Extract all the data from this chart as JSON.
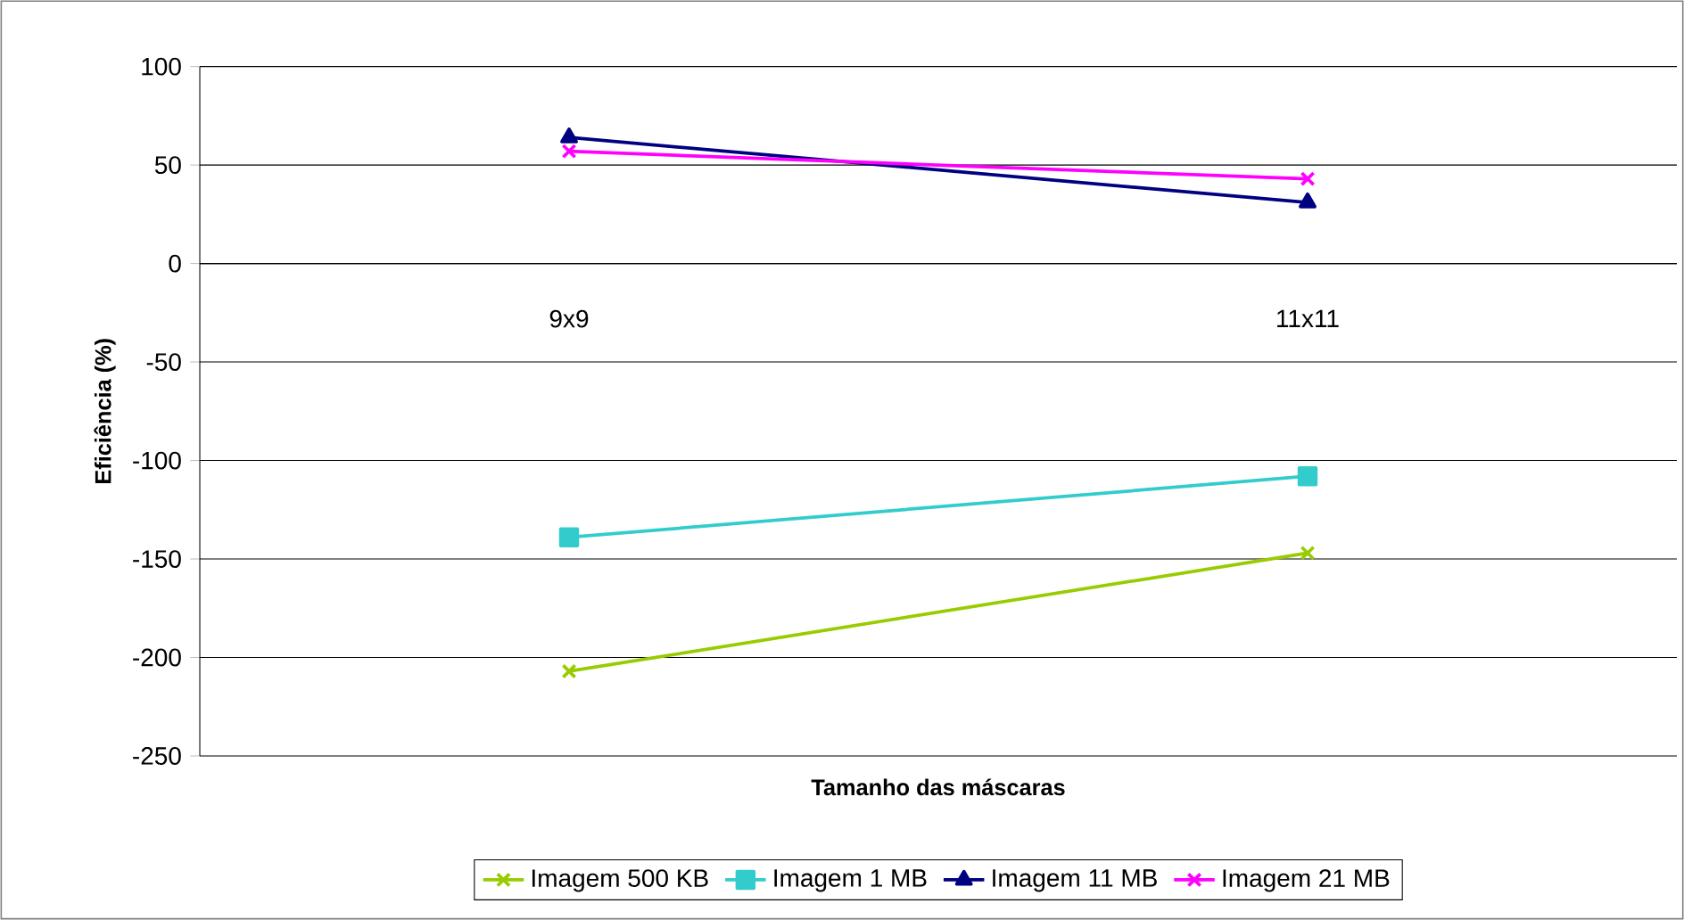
{
  "chart_data": {
    "type": "line",
    "xlabel": "Tamanho das máscaras",
    "ylabel": "Eficiência (%)",
    "categories": [
      "9x9",
      "11x11"
    ],
    "series": [
      {
        "name": "Imagem 500 KB",
        "color": "#99cc00",
        "marker": "cross",
        "values": [
          -207,
          -147
        ]
      },
      {
        "name": "Imagem 1 MB",
        "color": "#33cccc",
        "marker": "square",
        "values": [
          -139,
          -108
        ]
      },
      {
        "name": "Imagem 11 MB",
        "color": "#000080",
        "marker": "triangle",
        "values": [
          64,
          31
        ]
      },
      {
        "name": "Imagem 21 MB",
        "color": "#ff00ff",
        "marker": "cross",
        "values": [
          57,
          43
        ]
      }
    ],
    "ylim": [
      -250,
      100
    ],
    "yticks": [
      -250,
      -200,
      -150,
      -100,
      -50,
      0,
      50,
      100
    ],
    "grid": "y",
    "legend": "bottom",
    "line_style": "solid"
  }
}
